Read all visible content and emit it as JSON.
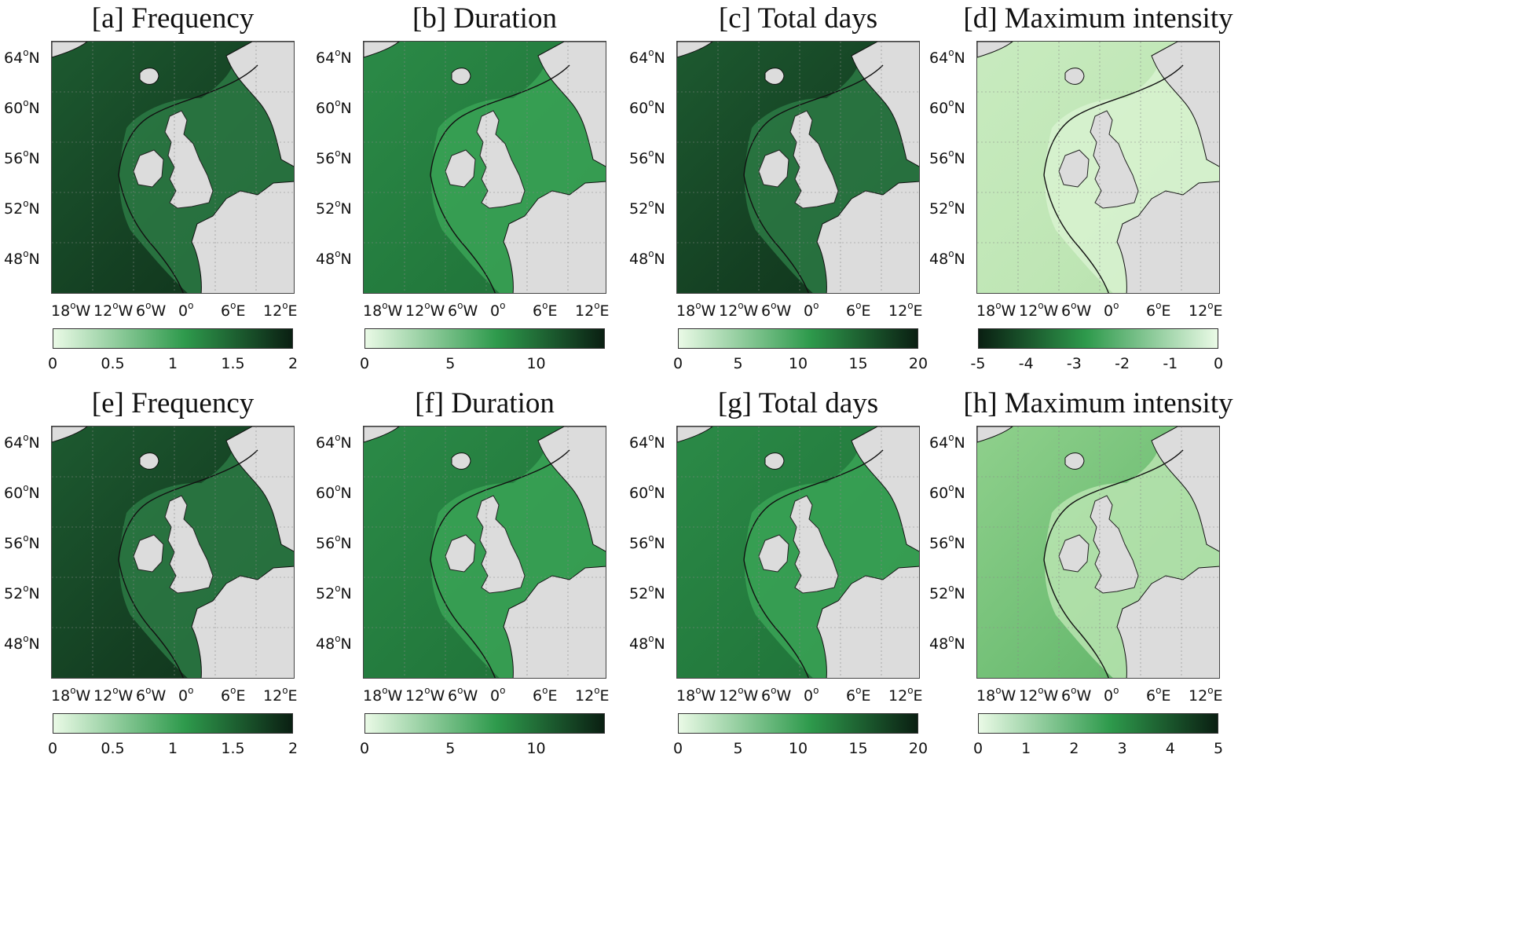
{
  "panels": [
    {
      "title": "[a] Frequency",
      "scheme": "dark",
      "lat_labels": [
        "64",
        "60",
        "56",
        "52",
        "48"
      ],
      "lat_unit": "N",
      "lon_labels": [
        "18",
        "12",
        "6",
        "0",
        "6",
        "12"
      ],
      "lon_units": [
        "W",
        "W",
        "W",
        "",
        "E",
        "E"
      ],
      "colorbar": {
        "ticks": [
          "0",
          "0.5",
          "1",
          "1.5",
          "2"
        ],
        "direction": "light-to-dark"
      }
    },
    {
      "title": "[b] Duration",
      "scheme": "mid",
      "lat_labels": [
        "64",
        "60",
        "56",
        "52",
        "48"
      ],
      "lat_unit": "N",
      "lon_labels": [
        "18",
        "12",
        "6",
        "0",
        "6",
        "12"
      ],
      "lon_units": [
        "W",
        "W",
        "W",
        "",
        "E",
        "E"
      ],
      "colorbar": {
        "ticks": [
          "0",
          "5",
          "10"
        ],
        "direction": "light-to-dark"
      }
    },
    {
      "title": "[c] Total days",
      "scheme": "dark",
      "lat_labels": [
        "64",
        "60",
        "56",
        "52",
        "48"
      ],
      "lat_unit": "N",
      "lon_labels": [
        "18",
        "12",
        "6",
        "0",
        "6",
        "12"
      ],
      "lon_units": [
        "W",
        "W",
        "W",
        "",
        "E",
        "E"
      ],
      "colorbar": {
        "ticks": [
          "0",
          "5",
          "10",
          "15",
          "20"
        ],
        "direction": "light-to-dark"
      }
    },
    {
      "title": "[d] Maximum intensity",
      "scheme": "light",
      "lat_labels": [
        "64",
        "60",
        "56",
        "52",
        "48"
      ],
      "lat_unit": "N",
      "lon_labels": [
        "18",
        "12",
        "6",
        "0",
        "6",
        "12"
      ],
      "lon_units": [
        "W",
        "W",
        "W",
        "",
        "E",
        "E"
      ],
      "colorbar": {
        "ticks": [
          "-5",
          "-4",
          "-3",
          "-2",
          "-1",
          "0"
        ],
        "direction": "dark-to-light"
      }
    },
    {
      "title": "[e] Frequency",
      "scheme": "dark",
      "lat_labels": [
        "64",
        "60",
        "56",
        "52",
        "48"
      ],
      "lat_unit": "N",
      "lon_labels": [
        "18",
        "12",
        "6",
        "0",
        "6",
        "12"
      ],
      "lon_units": [
        "W",
        "W",
        "W",
        "",
        "E",
        "E"
      ],
      "colorbar": {
        "ticks": [
          "0",
          "0.5",
          "1",
          "1.5",
          "2"
        ],
        "direction": "light-to-dark"
      }
    },
    {
      "title": "[f] Duration",
      "scheme": "mid",
      "lat_labels": [
        "64",
        "60",
        "56",
        "52",
        "48"
      ],
      "lat_unit": "N",
      "lon_labels": [
        "18",
        "12",
        "6",
        "0",
        "6",
        "12"
      ],
      "lon_units": [
        "W",
        "W",
        "W",
        "",
        "E",
        "E"
      ],
      "colorbar": {
        "ticks": [
          "0",
          "5",
          "10"
        ],
        "direction": "light-to-dark"
      }
    },
    {
      "title": "[g] Total days",
      "scheme": "mid",
      "lat_labels": [
        "64",
        "60",
        "56",
        "52",
        "48"
      ],
      "lat_unit": "N",
      "lon_labels": [
        "18",
        "12",
        "6",
        "0",
        "6",
        "12"
      ],
      "lon_units": [
        "W",
        "W",
        "W",
        "",
        "E",
        "E"
      ],
      "colorbar": {
        "ticks": [
          "0",
          "5",
          "10",
          "15",
          "20"
        ],
        "direction": "light-to-dark"
      }
    },
    {
      "title": "[h] Maximum intensity",
      "scheme": "lightmid",
      "lat_labels": [
        "64",
        "60",
        "56",
        "52",
        "48"
      ],
      "lat_unit": "N",
      "lon_labels": [
        "18",
        "12",
        "6",
        "0",
        "6",
        "12"
      ],
      "lon_units": [
        "W",
        "W",
        "W",
        "",
        "E",
        "E"
      ],
      "colorbar": {
        "ticks": [
          "0",
          "1",
          "2",
          "3",
          "4",
          "5"
        ],
        "direction": "light-to-dark"
      }
    }
  ],
  "degree_symbol": "o",
  "colors": {
    "land": "#dcdcdc",
    "coast": "#111111",
    "cmap_light": "#eafae6",
    "cmap_mid": "#2e9a4c",
    "cmap_dark": "#0a1f12"
  }
}
